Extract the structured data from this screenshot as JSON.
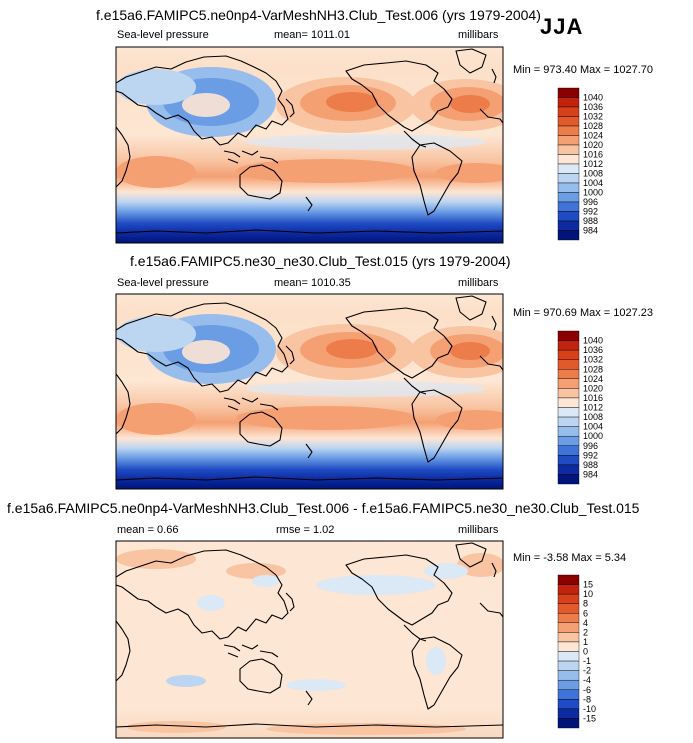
{
  "season": "JJA",
  "chart_data": [
    {
      "type": "heatmap",
      "title": "f.e15a6.FAMIPC5.ne0np4-VarMeshNH3.Club_Test.006 (yrs 1979-2004)",
      "variable": "Sea-level pressure",
      "mean_label": "mean= 1011.01",
      "units": "millibars",
      "minmax_label": "Min = 973.40 Max = 1027.70",
      "colorbar_levels": [
        "1040",
        "1036",
        "1032",
        "1028",
        "1024",
        "1020",
        "1016",
        "1012",
        "1008",
        "1004",
        "1000",
        "996",
        "992",
        "988",
        "984"
      ],
      "colorbar_colors": [
        "#8b0000",
        "#c2230f",
        "#d8401a",
        "#e35a2a",
        "#ec7c4a",
        "#f4a073",
        "#f8c4a2",
        "#fde6d3",
        "#dbe8f6",
        "#bcd5f1",
        "#97bdec",
        "#6b9de5",
        "#3f73d8",
        "#1f4cc3",
        "#0d2aa0",
        "#00147a"
      ]
    },
    {
      "type": "heatmap",
      "title": "f.e15a6.FAMIPC5.ne30_ne30.Club_Test.015 (yrs 1979-2004)",
      "variable": "Sea-level pressure",
      "mean_label": "mean= 1010.35",
      "units": "millibars",
      "minmax_label": "Min = 970.69 Max = 1027.23",
      "colorbar_levels": [
        "1040",
        "1036",
        "1032",
        "1028",
        "1024",
        "1020",
        "1016",
        "1012",
        "1008",
        "1004",
        "1000",
        "996",
        "992",
        "988",
        "984"
      ],
      "colorbar_colors": [
        "#8b0000",
        "#c2230f",
        "#d8401a",
        "#e35a2a",
        "#ec7c4a",
        "#f4a073",
        "#f8c4a2",
        "#fde6d3",
        "#dbe8f6",
        "#bcd5f1",
        "#97bdec",
        "#6b9de5",
        "#3f73d8",
        "#1f4cc3",
        "#0d2aa0",
        "#00147a"
      ]
    },
    {
      "type": "heatmap",
      "title": "f.e15a6.FAMIPC5.ne0np4-VarMeshNH3.Club_Test.006 - f.e15a6.FAMIPC5.ne30_ne30.Club_Test.015",
      "mean_label": "mean =   0.66",
      "rmse_label": "rmse =   1.02",
      "units": "millibars",
      "minmax_label": "Min =  -3.58 Max =   5.34",
      "colorbar_levels": [
        "15",
        "10",
        "8",
        "6",
        "4",
        "2",
        "1",
        "0",
        "-1",
        "-2",
        "-4",
        "-6",
        "-8",
        "-10",
        "-15"
      ],
      "colorbar_colors": [
        "#8b0000",
        "#c2230f",
        "#d8401a",
        "#e35a2a",
        "#ec7c4a",
        "#f4a073",
        "#f8c4a2",
        "#fde6d3",
        "#dbe8f6",
        "#bcd5f1",
        "#97bdec",
        "#6b9de5",
        "#3f73d8",
        "#1f4cc3",
        "#0d2aa0",
        "#00147a"
      ]
    }
  ]
}
